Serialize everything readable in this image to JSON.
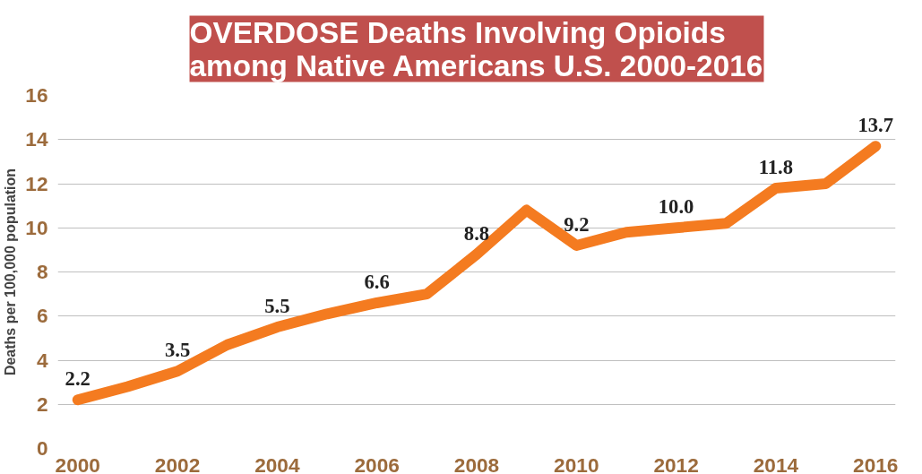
{
  "chart_data": {
    "type": "line",
    "title": "OVERDOSE Deaths Involving Opioids among Native Americans U.S. 2000-2016",
    "ylabel": "Deaths per 100,000 population",
    "x": [
      2000,
      2001,
      2002,
      2003,
      2004,
      2005,
      2006,
      2007,
      2008,
      2009,
      2010,
      2011,
      2012,
      2013,
      2014,
      2015,
      2016
    ],
    "series": [
      {
        "color": "#f47b20",
        "values": [
          2.2,
          2.8,
          3.5,
          4.7,
          5.5,
          6.1,
          6.6,
          7.0,
          8.8,
          10.8,
          9.2,
          9.8,
          10.0,
          10.2,
          11.8,
          12.0,
          13.7
        ],
        "value_labels": [
          "2.2",
          null,
          "3.5",
          null,
          "5.5",
          null,
          "6.6",
          null,
          "8.8",
          null,
          "9.2",
          null,
          "10.0",
          null,
          "11.8",
          null,
          "13.7"
        ]
      }
    ],
    "xlim": [
      1999.6,
      2016.4
    ],
    "xticks": [
      2000,
      2002,
      2004,
      2006,
      2008,
      2010,
      2012,
      2014,
      2016
    ],
    "ylim": [
      0,
      16
    ],
    "yticks": [
      0,
      2,
      4,
      6,
      8,
      10,
      12,
      14,
      16
    ],
    "grid": "y",
    "marker": "none",
    "line_style": "solid"
  }
}
